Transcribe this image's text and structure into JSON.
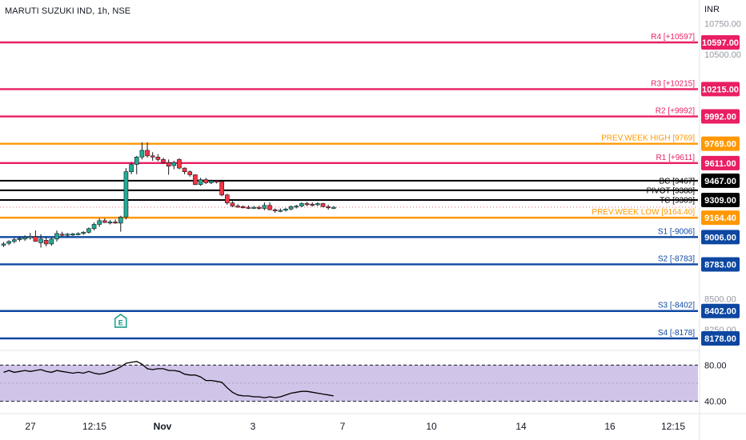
{
  "header": {
    "symbol": "MARUTI SUZUKI IND, 1h, NSE",
    "currency": "INR"
  },
  "colors": {
    "up": "#22ab94",
    "down": "#f23645",
    "resistance": "#e91e63",
    "support": "#0d47a1",
    "prev_week": "#ff9800",
    "pivot": "#000000",
    "rsi_band": "#d1c4e9",
    "rsi_line": "#000000"
  },
  "chart_data": [
    {
      "type": "candlestick",
      "title": "MARUTI SUZUKI IND, 1h, NSE",
      "ylabel": "INR",
      "ylim": [
        8000,
        10800
      ],
      "y_ticks": [
        "10750.00",
        "10500.00",
        "8500.00",
        "8250.00"
      ],
      "x_ticks": [
        "27",
        "12:15",
        "Nov",
        "3",
        "7",
        "10",
        "14",
        "16",
        "12:15"
      ],
      "levels": [
        {
          "label": "R4 [+10597]",
          "value": 10597,
          "price_label": "10597.00",
          "kind": "resistance"
        },
        {
          "label": "R3 [+10215]",
          "value": 10215,
          "price_label": "10215.00",
          "kind": "resistance"
        },
        {
          "label": "R2 [+9992]",
          "value": 9992,
          "price_label": "9992.00",
          "kind": "resistance"
        },
        {
          "label": "PREV.WEEK HIGH [9769]",
          "value": 9769,
          "price_label": "9769.00",
          "kind": "prev_week"
        },
        {
          "label": "R1 [+9611]",
          "value": 9611,
          "price_label": "9611.00",
          "kind": "resistance"
        },
        {
          "label": "BC [9467]",
          "value": 9467,
          "price_label": "9467.00",
          "kind": "pivot"
        },
        {
          "label": "PIVOT [9388]",
          "value": 9388,
          "price_label": "",
          "kind": "pivot"
        },
        {
          "label": "TC [9309]",
          "value": 9309,
          "price_label": "9309.00",
          "kind": "pivot"
        },
        {
          "label": "PREV.WEEK LOW [9164.40]",
          "value": 9164.4,
          "price_label": "9164.40",
          "kind": "prev_week"
        },
        {
          "label": "S1 [-9006]",
          "value": 9006,
          "price_label": "9006.00",
          "kind": "support"
        },
        {
          "label": "S2 [-8783]",
          "value": 8783,
          "price_label": "8783.00",
          "kind": "support"
        },
        {
          "label": "S3 [-8402]",
          "value": 8402,
          "price_label": "8402.00",
          "kind": "support"
        },
        {
          "label": "S4 [-8178]",
          "value": 8178,
          "price_label": "8178.00",
          "kind": "support"
        }
      ],
      "candles": [
        {
          "o": 8940,
          "h": 8965,
          "l": 8925,
          "c": 8950
        },
        {
          "o": 8955,
          "h": 8980,
          "l": 8940,
          "c": 8970
        },
        {
          "o": 8970,
          "h": 9000,
          "l": 8955,
          "c": 8985
        },
        {
          "o": 8985,
          "h": 9010,
          "l": 8970,
          "c": 8995
        },
        {
          "o": 8990,
          "h": 9020,
          "l": 8975,
          "c": 9005
        },
        {
          "o": 9000,
          "h": 9040,
          "l": 8985,
          "c": 9010
        },
        {
          "o": 9010,
          "h": 9060,
          "l": 8995,
          "c": 8970
        },
        {
          "o": 8960,
          "h": 9030,
          "l": 8920,
          "c": 8990
        },
        {
          "o": 8980,
          "h": 9010,
          "l": 8930,
          "c": 8950
        },
        {
          "o": 8950,
          "h": 9000,
          "l": 8935,
          "c": 8990
        },
        {
          "o": 8990,
          "h": 9060,
          "l": 8970,
          "c": 9035
        },
        {
          "o": 9030,
          "h": 9050,
          "l": 9010,
          "c": 9020
        },
        {
          "o": 9020,
          "h": 9040,
          "l": 9005,
          "c": 9030
        },
        {
          "o": 9028,
          "h": 9040,
          "l": 9015,
          "c": 9032
        },
        {
          "o": 9030,
          "h": 9045,
          "l": 9020,
          "c": 9035
        },
        {
          "o": 9035,
          "h": 9055,
          "l": 9025,
          "c": 9045
        },
        {
          "o": 9045,
          "h": 9085,
          "l": 9035,
          "c": 9075
        },
        {
          "o": 9075,
          "h": 9125,
          "l": 9060,
          "c": 9110
        },
        {
          "o": 9110,
          "h": 9160,
          "l": 9090,
          "c": 9140
        },
        {
          "o": 9140,
          "h": 9160,
          "l": 9120,
          "c": 9125
        },
        {
          "o": 9125,
          "h": 9145,
          "l": 9110,
          "c": 9130
        },
        {
          "o": 9130,
          "h": 9150,
          "l": 9115,
          "c": 9125
        },
        {
          "o": 9120,
          "h": 9180,
          "l": 9050,
          "c": 9170
        },
        {
          "o": 9170,
          "h": 9570,
          "l": 9150,
          "c": 9540
        },
        {
          "o": 9540,
          "h": 9620,
          "l": 9520,
          "c": 9600
        },
        {
          "o": 9600,
          "h": 9670,
          "l": 9520,
          "c": 9660
        },
        {
          "o": 9660,
          "h": 9780,
          "l": 9640,
          "c": 9715
        },
        {
          "o": 9715,
          "h": 9780,
          "l": 9655,
          "c": 9670
        },
        {
          "o": 9670,
          "h": 9700,
          "l": 9630,
          "c": 9660
        },
        {
          "o": 9660,
          "h": 9685,
          "l": 9625,
          "c": 9640
        },
        {
          "o": 9640,
          "h": 9655,
          "l": 9605,
          "c": 9615
        },
        {
          "o": 9615,
          "h": 9640,
          "l": 9515,
          "c": 9585
        },
        {
          "o": 9590,
          "h": 9630,
          "l": 9560,
          "c": 9615
        },
        {
          "o": 9640,
          "h": 9650,
          "l": 9560,
          "c": 9570
        },
        {
          "o": 9570,
          "h": 9575,
          "l": 9520,
          "c": 9540
        },
        {
          "o": 9540,
          "h": 9550,
          "l": 9500,
          "c": 9515
        },
        {
          "o": 9515,
          "h": 9520,
          "l": 9430,
          "c": 9435
        },
        {
          "o": 9435,
          "h": 9490,
          "l": 9425,
          "c": 9475
        },
        {
          "o": 9475,
          "h": 9490,
          "l": 9440,
          "c": 9450
        },
        {
          "o": 9450,
          "h": 9475,
          "l": 9440,
          "c": 9465
        },
        {
          "o": 9465,
          "h": 9470,
          "l": 9445,
          "c": 9455
        },
        {
          "o": 9460,
          "h": 9465,
          "l": 9340,
          "c": 9350
        },
        {
          "o": 9350,
          "h": 9360,
          "l": 9270,
          "c": 9285
        },
        {
          "o": 9285,
          "h": 9300,
          "l": 9250,
          "c": 9260
        },
        {
          "o": 9260,
          "h": 9275,
          "l": 9245,
          "c": 9255
        },
        {
          "o": 9255,
          "h": 9265,
          "l": 9240,
          "c": 9250
        },
        {
          "o": 9250,
          "h": 9265,
          "l": 9235,
          "c": 9245
        },
        {
          "o": 9245,
          "h": 9260,
          "l": 9235,
          "c": 9250
        },
        {
          "o": 9250,
          "h": 9260,
          "l": 9230,
          "c": 9240
        },
        {
          "o": 9240,
          "h": 9290,
          "l": 9225,
          "c": 9265
        },
        {
          "o": 9265,
          "h": 9290,
          "l": 9225,
          "c": 9230
        },
        {
          "o": 9230,
          "h": 9240,
          "l": 9205,
          "c": 9220
        },
        {
          "o": 9220,
          "h": 9240,
          "l": 9210,
          "c": 9225
        },
        {
          "o": 9225,
          "h": 9245,
          "l": 9215,
          "c": 9235
        },
        {
          "o": 9235,
          "h": 9265,
          "l": 9225,
          "c": 9255
        },
        {
          "o": 9255,
          "h": 9270,
          "l": 9240,
          "c": 9260
        },
        {
          "o": 9260,
          "h": 9290,
          "l": 9250,
          "c": 9280
        },
        {
          "o": 9280,
          "h": 9295,
          "l": 9260,
          "c": 9275
        },
        {
          "o": 9275,
          "h": 9290,
          "l": 9255,
          "c": 9270
        },
        {
          "o": 9270,
          "h": 9290,
          "l": 9260,
          "c": 9280
        },
        {
          "o": 9280,
          "h": 9285,
          "l": 9250,
          "c": 9255
        },
        {
          "o": 9255,
          "h": 9270,
          "l": 9230,
          "c": 9245
        },
        {
          "o": 9245,
          "h": 9260,
          "l": 9235,
          "c": 9250
        }
      ],
      "markers": [
        {
          "label": "E",
          "candle_index": 22
        }
      ]
    },
    {
      "type": "line",
      "title": "",
      "ylim": [
        30,
        90
      ],
      "y_ticks": [
        "80.00",
        "40.00"
      ],
      "band": [
        40,
        80
      ],
      "midline": 60,
      "values": [
        72,
        74,
        72,
        73,
        74,
        73,
        74,
        75,
        73,
        72,
        74,
        73,
        72,
        71,
        72,
        71,
        73,
        71,
        70,
        71,
        73,
        75,
        78,
        82,
        83,
        84,
        81,
        76,
        75,
        76,
        76,
        74,
        74,
        73,
        70,
        69,
        69,
        67,
        63,
        63,
        62,
        61,
        55,
        50,
        47,
        46,
        46,
        45,
        45,
        44,
        45,
        44,
        45,
        47,
        49,
        50,
        51,
        51,
        50,
        49,
        48,
        47,
        46
      ]
    }
  ]
}
